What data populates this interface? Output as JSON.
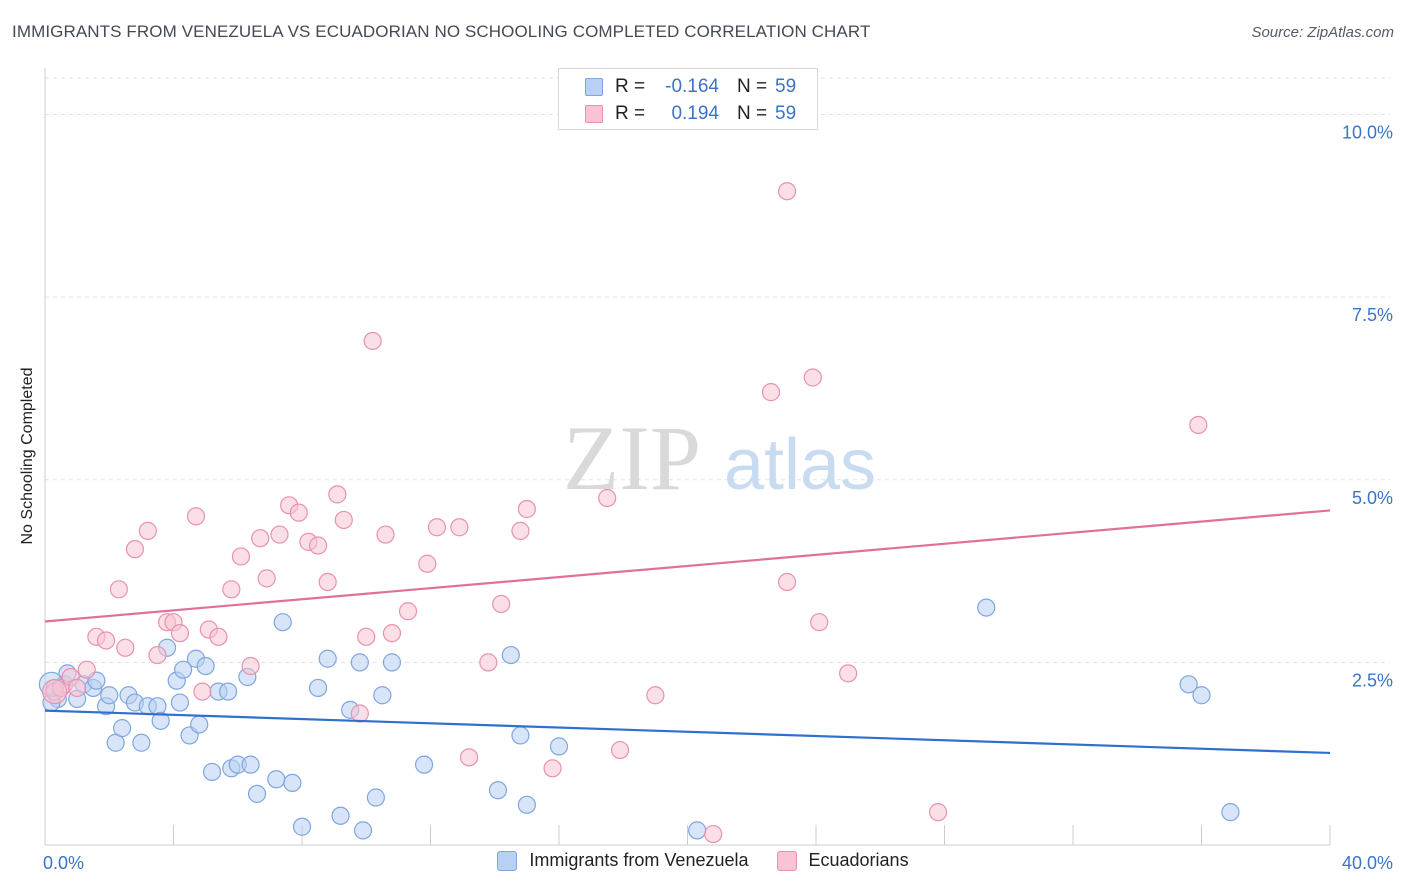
{
  "title": "IMMIGRANTS FROM VENEZUELA VS ECUADORIAN NO SCHOOLING COMPLETED CORRELATION CHART",
  "source": "Source: ZipAtlas.com",
  "watermark": {
    "zip": "ZIP",
    "atlas": "atlas"
  },
  "legend_top": [
    {
      "r_label": "R =",
      "r_value": "-0.164",
      "n_label": "N =",
      "n_value": "59"
    },
    {
      "r_label": "R =",
      "r_value": "0.194",
      "n_label": "N =",
      "n_value": "59"
    }
  ],
  "legend_bottom": [
    {
      "label": "Immigrants from Venezuela"
    },
    {
      "label": "Ecuadorians"
    }
  ],
  "colors": {
    "blue_fill": "#b8d0f2",
    "blue_stroke": "#7fa6de",
    "blue_line": "#2f6fce",
    "pink_fill": "#f8c4d4",
    "pink_stroke": "#e892ae",
    "pink_line": "#e0709a",
    "tick_label": "#3b73c8",
    "grid": "#e2e2e2",
    "axis": "#cccccc"
  },
  "chart_data": {
    "type": "scatter",
    "title": "IMMIGRANTS FROM VENEZUELA VS ECUADORIAN NO SCHOOLING COMPLETED CORRELATION CHART",
    "xlabel": "",
    "ylabel": "No Schooling Completed",
    "xlim": [
      0,
      40
    ],
    "ylim": [
      0,
      10.5
    ],
    "x_tick_labels": [
      "0.0%",
      "40.0%"
    ],
    "y_ticks": [
      2.5,
      5.0,
      7.5,
      10.0
    ],
    "y_tick_labels": [
      "2.5%",
      "5.0%",
      "7.5%",
      "10.0%"
    ],
    "grid": true,
    "legend_position": "top-center and bottom",
    "series": [
      {
        "name": "Immigrants from Venezuela",
        "trend": {
          "x": [
            0,
            40
          ],
          "y": [
            1.84,
            1.26
          ]
        },
        "points": [
          [
            0.3,
            2.15
          ],
          [
            0.4,
            2.0
          ],
          [
            0.6,
            2.2
          ],
          [
            0.7,
            2.35
          ],
          [
            1.0,
            2.0
          ],
          [
            1.2,
            2.2
          ],
          [
            1.5,
            2.15
          ],
          [
            1.6,
            2.25
          ],
          [
            1.9,
            1.9
          ],
          [
            2.0,
            2.05
          ],
          [
            2.2,
            1.4
          ],
          [
            2.4,
            1.6
          ],
          [
            2.6,
            2.05
          ],
          [
            2.8,
            1.95
          ],
          [
            3.0,
            1.4
          ],
          [
            3.2,
            1.9
          ],
          [
            3.5,
            1.9
          ],
          [
            3.6,
            1.7
          ],
          [
            3.8,
            2.7
          ],
          [
            4.1,
            2.25
          ],
          [
            4.2,
            1.95
          ],
          [
            4.3,
            2.4
          ],
          [
            4.5,
            1.5
          ],
          [
            4.7,
            2.55
          ],
          [
            4.8,
            1.65
          ],
          [
            5.0,
            2.45
          ],
          [
            5.2,
            1.0
          ],
          [
            5.4,
            2.1
          ],
          [
            5.7,
            2.1
          ],
          [
            5.8,
            1.05
          ],
          [
            6.0,
            1.1
          ],
          [
            6.3,
            2.3
          ],
          [
            6.4,
            1.1
          ],
          [
            6.6,
            0.7
          ],
          [
            7.2,
            0.9
          ],
          [
            7.4,
            3.05
          ],
          [
            7.7,
            0.85
          ],
          [
            8.0,
            0.25
          ],
          [
            8.5,
            2.15
          ],
          [
            8.8,
            2.55
          ],
          [
            9.2,
            0.4
          ],
          [
            9.5,
            1.85
          ],
          [
            9.8,
            2.5
          ],
          [
            9.9,
            0.2
          ],
          [
            10.3,
            0.65
          ],
          [
            10.5,
            2.05
          ],
          [
            10.8,
            2.5
          ],
          [
            11.8,
            1.1
          ],
          [
            14.1,
            0.75
          ],
          [
            14.5,
            2.6
          ],
          [
            14.8,
            1.5
          ],
          [
            15.0,
            0.55
          ],
          [
            16.0,
            1.35
          ],
          [
            20.3,
            0.2
          ],
          [
            29.3,
            3.25
          ],
          [
            35.6,
            2.2
          ],
          [
            36.0,
            2.05
          ],
          [
            36.9,
            0.45
          ],
          [
            0.2,
            1.95
          ]
        ]
      },
      {
        "name": "Ecuadorians",
        "trend": {
          "x": [
            0,
            40
          ],
          "y": [
            3.06,
            4.58
          ]
        },
        "points": [
          [
            0.3,
            2.1
          ],
          [
            0.5,
            2.15
          ],
          [
            0.8,
            2.3
          ],
          [
            1.0,
            2.15
          ],
          [
            1.3,
            2.4
          ],
          [
            1.6,
            2.85
          ],
          [
            1.9,
            2.8
          ],
          [
            2.3,
            3.5
          ],
          [
            2.5,
            2.7
          ],
          [
            2.8,
            4.05
          ],
          [
            3.2,
            4.3
          ],
          [
            3.5,
            2.6
          ],
          [
            3.8,
            3.05
          ],
          [
            4.0,
            3.05
          ],
          [
            4.2,
            2.9
          ],
          [
            4.7,
            4.5
          ],
          [
            4.9,
            2.1
          ],
          [
            5.1,
            2.95
          ],
          [
            5.4,
            2.85
          ],
          [
            5.8,
            3.5
          ],
          [
            6.1,
            3.95
          ],
          [
            6.4,
            2.45
          ],
          [
            6.7,
            4.2
          ],
          [
            6.9,
            3.65
          ],
          [
            7.3,
            4.25
          ],
          [
            7.6,
            4.65
          ],
          [
            7.9,
            4.55
          ],
          [
            8.2,
            4.15
          ],
          [
            8.5,
            4.1
          ],
          [
            8.8,
            3.6
          ],
          [
            9.1,
            4.8
          ],
          [
            9.3,
            4.45
          ],
          [
            9.8,
            1.8
          ],
          [
            10.0,
            2.85
          ],
          [
            10.2,
            6.9
          ],
          [
            10.6,
            4.25
          ],
          [
            10.8,
            2.9
          ],
          [
            11.3,
            3.2
          ],
          [
            11.9,
            3.85
          ],
          [
            12.2,
            4.35
          ],
          [
            12.9,
            4.35
          ],
          [
            13.2,
            1.2
          ],
          [
            13.8,
            2.5
          ],
          [
            14.2,
            3.3
          ],
          [
            14.8,
            4.3
          ],
          [
            15.0,
            4.6
          ],
          [
            15.8,
            1.05
          ],
          [
            17.5,
            4.75
          ],
          [
            17.9,
            1.3
          ],
          [
            19.0,
            2.05
          ],
          [
            20.8,
            0.15
          ],
          [
            22.6,
            6.2
          ],
          [
            23.1,
            3.6
          ],
          [
            23.1,
            8.95
          ],
          [
            23.9,
            6.4
          ],
          [
            24.1,
            3.05
          ],
          [
            25.0,
            2.35
          ],
          [
            27.8,
            0.45
          ],
          [
            35.9,
            5.75
          ]
        ]
      }
    ]
  }
}
